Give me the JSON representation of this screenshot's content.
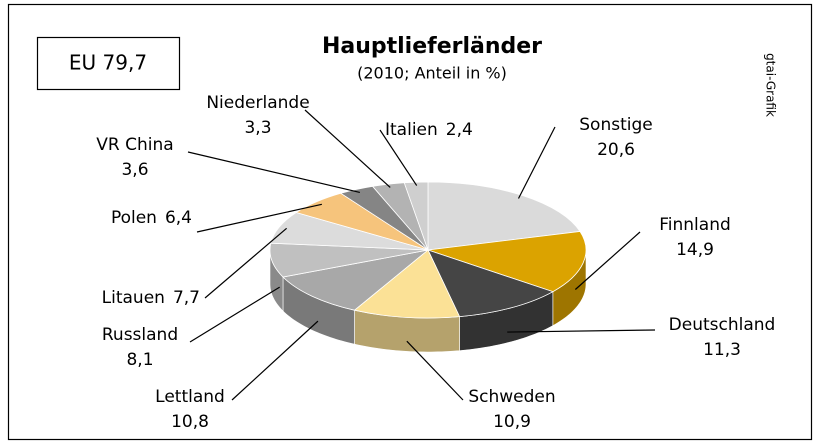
{
  "chart_data": {
    "type": "pie3d",
    "title": "Hauptlieferländer",
    "subtitle": "(2010; Anteil in %)",
    "annotation": "EU 79,7",
    "credit": "gtai-Grafik",
    "categories": [
      "Sonstige",
      "Finnland",
      "Deutschland",
      "Schweden",
      "Lettland",
      "Russland",
      "Litauen",
      "Polen",
      "VR China",
      "Niederlande",
      "Italien"
    ],
    "values": [
      20.6,
      14.9,
      11.3,
      10.9,
      10.8,
      8.1,
      7.7,
      6.4,
      3.6,
      3.3,
      2.4
    ],
    "value_labels": [
      "20,6",
      "14,9",
      "11,3",
      "10,9",
      "10,8",
      "8,1",
      "7,7",
      "6,4",
      "3,6",
      "3,3",
      "2,4"
    ],
    "colors": [
      "#dadada",
      "#dba300",
      "#454545",
      "#fbe196",
      "#a8a8a8",
      "#c0c0c0",
      "#dcdcdc",
      "#f6c47c",
      "#858585",
      "#b3b3b3",
      "#cfcfcf"
    ]
  }
}
